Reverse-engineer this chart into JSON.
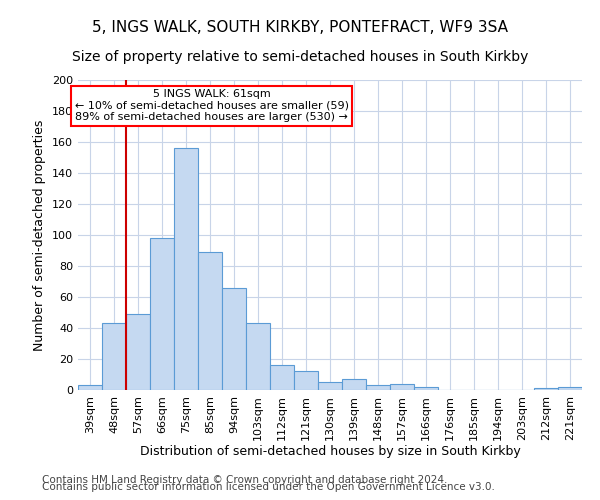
{
  "title": "5, INGS WALK, SOUTH KIRKBY, PONTEFRACT, WF9 3SA",
  "subtitle": "Size of property relative to semi-detached houses in South Kirkby",
  "xlabel": "Distribution of semi-detached houses by size in South Kirkby",
  "ylabel": "Number of semi-detached properties",
  "categories": [
    "39sqm",
    "48sqm",
    "57sqm",
    "66sqm",
    "75sqm",
    "85sqm",
    "94sqm",
    "103sqm",
    "112sqm",
    "121sqm",
    "130sqm",
    "139sqm",
    "148sqm",
    "157sqm",
    "166sqm",
    "176sqm",
    "185sqm",
    "194sqm",
    "203sqm",
    "212sqm",
    "221sqm"
  ],
  "values": [
    3,
    43,
    49,
    98,
    156,
    89,
    66,
    43,
    16,
    12,
    5,
    7,
    3,
    4,
    2,
    0,
    0,
    0,
    0,
    1,
    2
  ],
  "bar_color": "#c5d9f1",
  "bar_edge_color": "#5b9bd5",
  "subject_label": "5 INGS WALK: 61sqm",
  "annotation_line1": "← 10% of semi-detached houses are smaller (59)",
  "annotation_line2": "89% of semi-detached houses are larger (530) →",
  "vline_color": "#cc0000",
  "vline_pos": 1.5,
  "ylim": [
    0,
    200
  ],
  "yticks": [
    0,
    20,
    40,
    60,
    80,
    100,
    120,
    140,
    160,
    180,
    200
  ],
  "footnote1": "Contains HM Land Registry data © Crown copyright and database right 2024.",
  "footnote2": "Contains public sector information licensed under the Open Government Licence v3.0.",
  "background_color": "#ffffff",
  "grid_color": "#c8d4e8",
  "title_fontsize": 11,
  "subtitle_fontsize": 10,
  "xlabel_fontsize": 9,
  "ylabel_fontsize": 9,
  "tick_fontsize": 8,
  "annotation_fontsize": 8,
  "footnote_fontsize": 7.5
}
